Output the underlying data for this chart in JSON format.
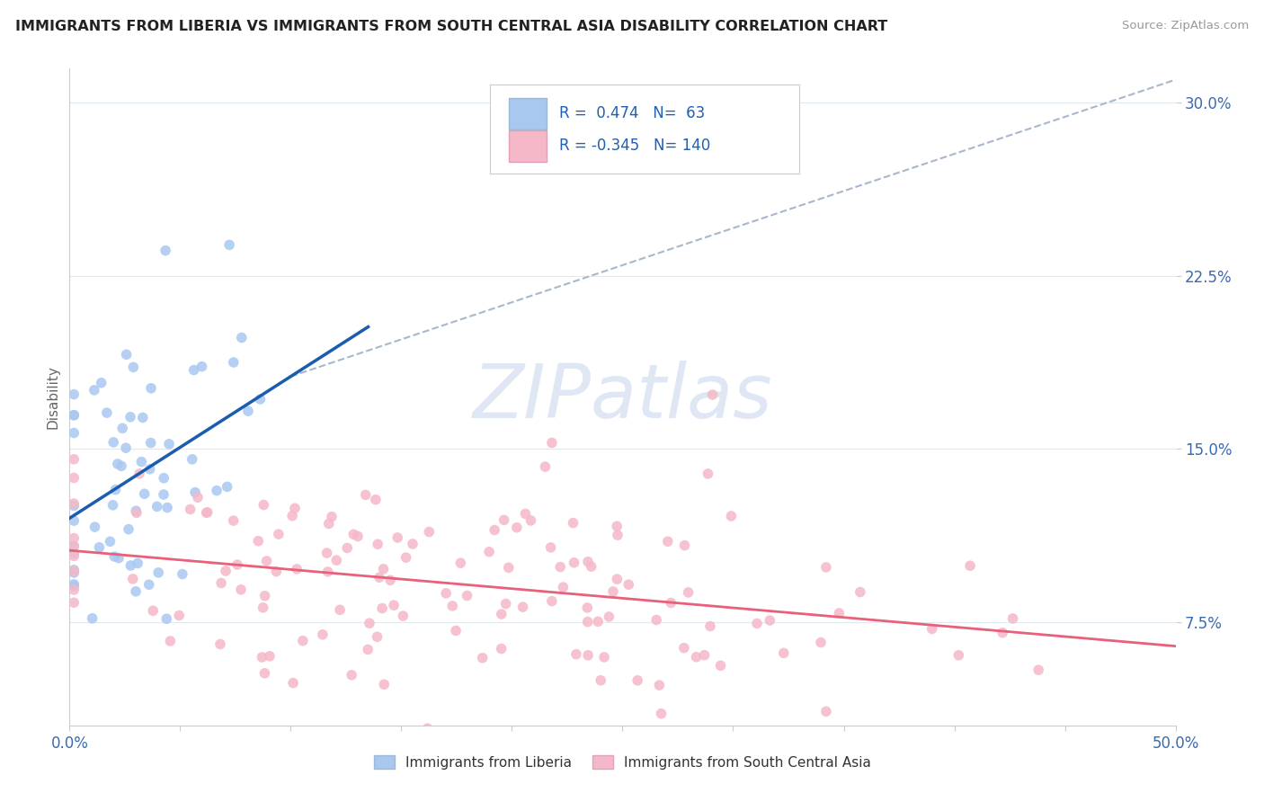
{
  "title": "IMMIGRANTS FROM LIBERIA VS IMMIGRANTS FROM SOUTH CENTRAL ASIA DISABILITY CORRELATION CHART",
  "source": "Source: ZipAtlas.com",
  "ylabel": "Disability",
  "xlim": [
    0.0,
    0.5
  ],
  "ylim": [
    0.03,
    0.315
  ],
  "xticks": [
    0.0,
    0.05,
    0.1,
    0.15,
    0.2,
    0.25,
    0.3,
    0.35,
    0.4,
    0.45,
    0.5
  ],
  "yticks": [
    0.075,
    0.15,
    0.225,
    0.3
  ],
  "yticklabels": [
    "7.5%",
    "15.0%",
    "22.5%",
    "30.0%"
  ],
  "blue_R": 0.474,
  "blue_N": 63,
  "pink_R": -0.345,
  "pink_N": 140,
  "blue_color": "#a8c8f0",
  "pink_color": "#f5b8c8",
  "blue_line_color": "#1a5cb0",
  "pink_line_color": "#e8607a",
  "dashed_line_color": "#a8b8cc",
  "watermark_color": "#c8d8ec",
  "legend_label_blue": "Immigrants from Liberia",
  "legend_label_pink": "Immigrants from South Central Asia",
  "grid_color": "#e0e8f0",
  "title_color": "#222222",
  "tick_color": "#3a6ab0",
  "ylabel_color": "#666666"
}
